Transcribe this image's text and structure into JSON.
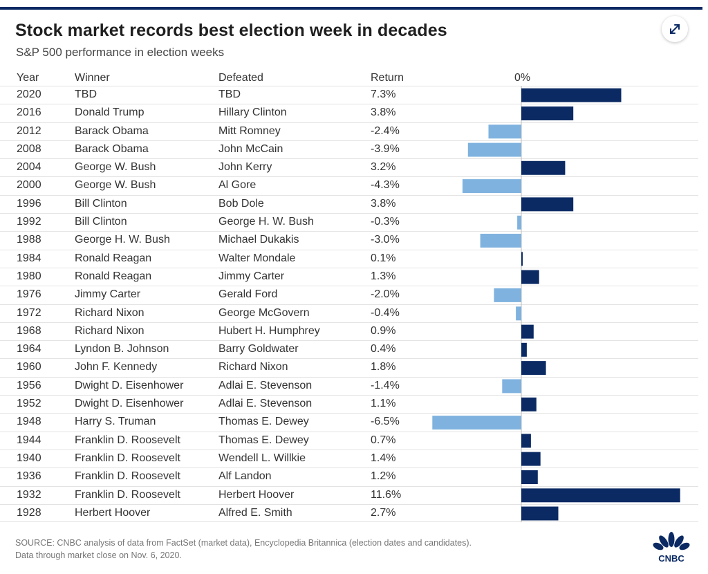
{
  "header": {
    "title": "Stock market records best election week in decades",
    "subtitle": "S&P 500 performance in election weeks"
  },
  "columns": {
    "year": "Year",
    "winner": "Winner",
    "defeated": "Defeated",
    "return": "Return",
    "zero_label": "0%"
  },
  "colors": {
    "positive": "#0b2a64",
    "negative": "#7fb2df",
    "accent": "#0b2a64"
  },
  "icons": {
    "expand": "expand-arrows-icon",
    "logo": "cnbc-peacock-logo"
  },
  "chart_data": {
    "type": "bar",
    "orientation": "horizontal",
    "title": "Stock market records best election week in decades",
    "subtitle": "S&P 500 performance in election weeks",
    "zero_label": "0%",
    "categories": [
      "2020",
      "2016",
      "2012",
      "2008",
      "2004",
      "2000",
      "1996",
      "1992",
      "1988",
      "1984",
      "1980",
      "1976",
      "1972",
      "1968",
      "1964",
      "1960",
      "1956",
      "1952",
      "1948",
      "1944",
      "1940",
      "1936",
      "1932",
      "1928"
    ],
    "values": [
      7.3,
      3.8,
      -2.4,
      -3.9,
      3.2,
      -4.3,
      3.8,
      -0.3,
      -3.0,
      0.1,
      1.3,
      -2.0,
      -0.4,
      0.9,
      0.4,
      1.8,
      -1.4,
      1.1,
      -6.5,
      0.7,
      1.4,
      1.2,
      11.6,
      2.7
    ],
    "xlim": [
      -6.5,
      11.6
    ],
    "rows": [
      {
        "year": "2020",
        "winner": "TBD",
        "defeated": "TBD",
        "return": "7.3%",
        "value": 7.3
      },
      {
        "year": "2016",
        "winner": "Donald Trump",
        "defeated": "Hillary Clinton",
        "return": "3.8%",
        "value": 3.8
      },
      {
        "year": "2012",
        "winner": "Barack Obama",
        "defeated": "Mitt Romney",
        "return": "-2.4%",
        "value": -2.4
      },
      {
        "year": "2008",
        "winner": "Barack Obama",
        "defeated": "John McCain",
        "return": "-3.9%",
        "value": -3.9
      },
      {
        "year": "2004",
        "winner": "George W. Bush",
        "defeated": "John Kerry",
        "return": "3.2%",
        "value": 3.2
      },
      {
        "year": "2000",
        "winner": "George W. Bush",
        "defeated": "Al Gore",
        "return": "-4.3%",
        "value": -4.3
      },
      {
        "year": "1996",
        "winner": "Bill Clinton",
        "defeated": "Bob Dole",
        "return": "3.8%",
        "value": 3.8
      },
      {
        "year": "1992",
        "winner": "Bill Clinton",
        "defeated": "George H. W. Bush",
        "return": "-0.3%",
        "value": -0.3
      },
      {
        "year": "1988",
        "winner": "George H. W. Bush",
        "defeated": "Michael Dukakis",
        "return": "-3.0%",
        "value": -3.0
      },
      {
        "year": "1984",
        "winner": "Ronald Reagan",
        "defeated": "Walter Mondale",
        "return": "0.1%",
        "value": 0.1
      },
      {
        "year": "1980",
        "winner": "Ronald Reagan",
        "defeated": "Jimmy Carter",
        "return": "1.3%",
        "value": 1.3
      },
      {
        "year": "1976",
        "winner": "Jimmy Carter",
        "defeated": "Gerald Ford",
        "return": "-2.0%",
        "value": -2.0
      },
      {
        "year": "1972",
        "winner": "Richard Nixon",
        "defeated": "George McGovern",
        "return": "-0.4%",
        "value": -0.4
      },
      {
        "year": "1968",
        "winner": "Richard Nixon",
        "defeated": "Hubert H. Humphrey",
        "return": "0.9%",
        "value": 0.9
      },
      {
        "year": "1964",
        "winner": "Lyndon B. Johnson",
        "defeated": "Barry Goldwater",
        "return": "0.4%",
        "value": 0.4
      },
      {
        "year": "1960",
        "winner": "John F. Kennedy",
        "defeated": "Richard Nixon",
        "return": "1.8%",
        "value": 1.8
      },
      {
        "year": "1956",
        "winner": "Dwight D. Eisenhower",
        "defeated": "Adlai E. Stevenson",
        "return": "-1.4%",
        "value": -1.4
      },
      {
        "year": "1952",
        "winner": "Dwight D. Eisenhower",
        "defeated": "Adlai E. Stevenson",
        "return": "1.1%",
        "value": 1.1
      },
      {
        "year": "1948",
        "winner": "Harry S. Truman",
        "defeated": "Thomas E. Dewey",
        "return": "-6.5%",
        "value": -6.5
      },
      {
        "year": "1944",
        "winner": "Franklin D. Roosevelt",
        "defeated": "Thomas E. Dewey",
        "return": "0.7%",
        "value": 0.7
      },
      {
        "year": "1940",
        "winner": "Franklin D. Roosevelt",
        "defeated": "Wendell L. Willkie",
        "return": "1.4%",
        "value": 1.4
      },
      {
        "year": "1936",
        "winner": "Franklin D. Roosevelt",
        "defeated": "Alf Landon",
        "return": "1.2%",
        "value": 1.2
      },
      {
        "year": "1932",
        "winner": "Franklin D. Roosevelt",
        "defeated": "Herbert Hoover",
        "return": "11.6%",
        "value": 11.6
      },
      {
        "year": "1928",
        "winner": "Herbert Hoover",
        "defeated": "Alfred E. Smith",
        "return": "2.7%",
        "value": 2.7
      }
    ]
  },
  "footer": {
    "source_line1": "SOURCE: CNBC analysis of data from FactSet (market data), Encyclopedia Britannica (election dates and candidates).",
    "source_line2": "Data through market close on Nov. 6, 2020."
  }
}
